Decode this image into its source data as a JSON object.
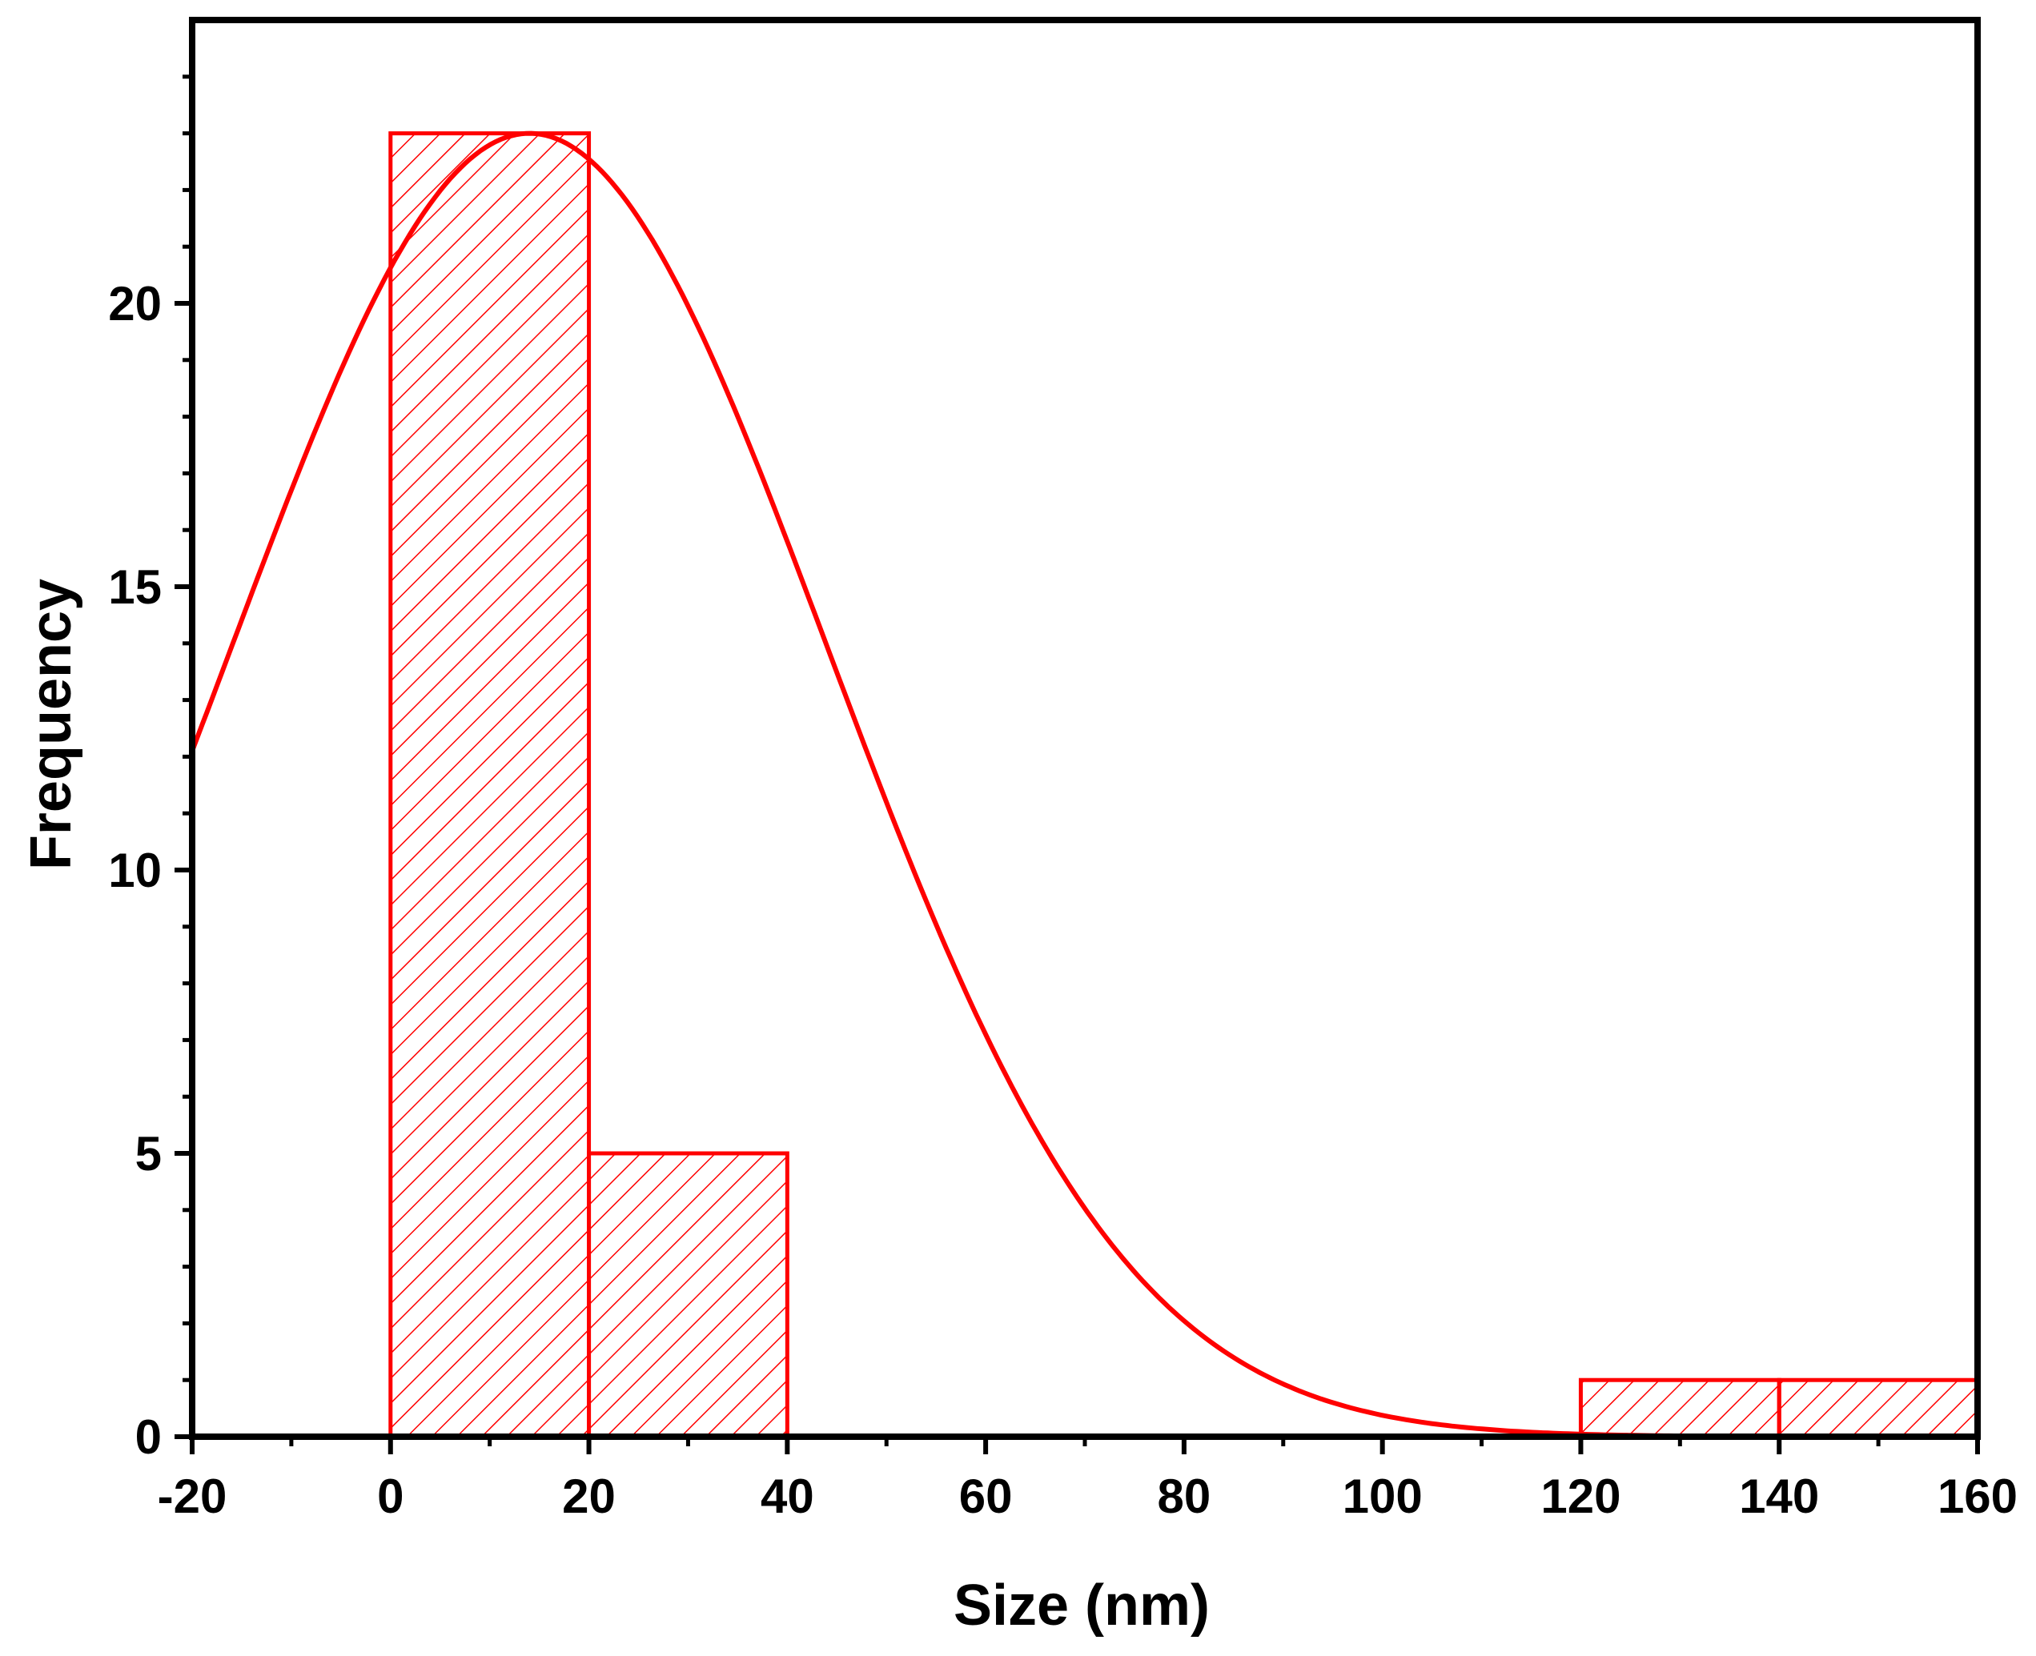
{
  "chart_data": {
    "type": "bar",
    "title": "",
    "xlabel": "Size (nm)",
    "ylabel": "Frequency",
    "xlim": [
      -20,
      160
    ],
    "ylim": [
      0,
      25
    ],
    "x_ticks": [
      -20,
      0,
      20,
      40,
      60,
      80,
      100,
      120,
      140,
      160
    ],
    "y_ticks": [
      0,
      5,
      10,
      15,
      20
    ],
    "grid": false,
    "legend": false,
    "histogram": {
      "bins": [
        {
          "start": 0,
          "end": 20,
          "count": 23
        },
        {
          "start": 20,
          "end": 40,
          "count": 5
        },
        {
          "start": 40,
          "end": 60,
          "count": 0
        },
        {
          "start": 60,
          "end": 80,
          "count": 0
        },
        {
          "start": 80,
          "end": 100,
          "count": 0
        },
        {
          "start": 100,
          "end": 120,
          "count": 0
        },
        {
          "start": 120,
          "end": 140,
          "count": 1
        },
        {
          "start": 140,
          "end": 160,
          "count": 1
        }
      ],
      "fill": "hatched"
    },
    "fit_curve": {
      "type": "gaussian",
      "peak_x": 14,
      "peak_y": 23,
      "sigma": 30,
      "x_range": [
        -20,
        133
      ]
    },
    "colors": {
      "bars": "#ff0000",
      "curve": "#ff0000",
      "axes": "#000000"
    }
  }
}
